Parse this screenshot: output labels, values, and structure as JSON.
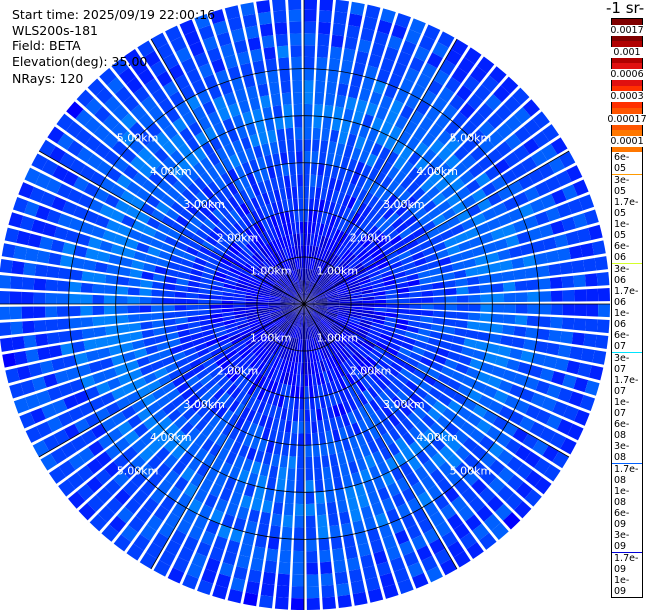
{
  "chart_data": {
    "type": "heatmap",
    "plot_kind": "polar-ppi",
    "header": [
      "Start time: 2025/09/19 22:00:16",
      "WLS200s-181",
      "Field: BETA",
      "Elevation(deg): 35.00",
      "NRays: 120"
    ],
    "colorbar_title": "-1 sr-",
    "colorbar": {
      "labels": [
        "0.0017",
        "0.001",
        "0.0006",
        "0.0003",
        "0.00017",
        "0.0001",
        "6e-05",
        "3e-05",
        "1.7e-05",
        "1e-05",
        "6e-06",
        "3e-06",
        "1.7e-06",
        "1e-06",
        "6e-07",
        "3e-07",
        "1.7e-07",
        "1e-07",
        "6e-08",
        "3e-08",
        "1.7e-08",
        "1e-08",
        "6e-09",
        "3e-09",
        "1.7e-09",
        "1e-09"
      ],
      "colors": [
        "#800000",
        "#b00000",
        "#e01010",
        "#ff3000",
        "#ff5500",
        "#ff7700",
        "#ff9a00",
        "#ffb800",
        "#ffd500",
        "#ffff00",
        "#d5ff2a",
        "#aaff55",
        "#80ff80",
        "#55ffaa",
        "#2affd5",
        "#00e4ff",
        "#00c0ff",
        "#00a0ff",
        "#0080ff",
        "#0060ff",
        "#0040ff",
        "#0020ff",
        "#0000ff",
        "#0000d8",
        "#0000aa",
        "#000080"
      ]
    },
    "rings_km": [
      1,
      2,
      3,
      4,
      5
    ],
    "ring_label_texts": [
      "1.00km",
      "2.00km",
      "3.00km",
      "4.00km",
      "5.00km"
    ],
    "max_range_km": 6.5,
    "n_rays": 120,
    "profile": {
      "range_km": [
        0,
        0.5,
        1,
        1.5,
        2,
        2.5,
        3,
        3.5,
        4,
        4.5,
        5,
        5.5,
        6,
        6.5
      ],
      "log10_beta": [
        -8.9,
        -8.6,
        -8.3,
        -8.1,
        -7.9,
        -7.75,
        -7.65,
        -7.5,
        -7.35,
        -7.45,
        -7.55,
        -7.6,
        -7.7,
        -7.8
      ]
    }
  }
}
